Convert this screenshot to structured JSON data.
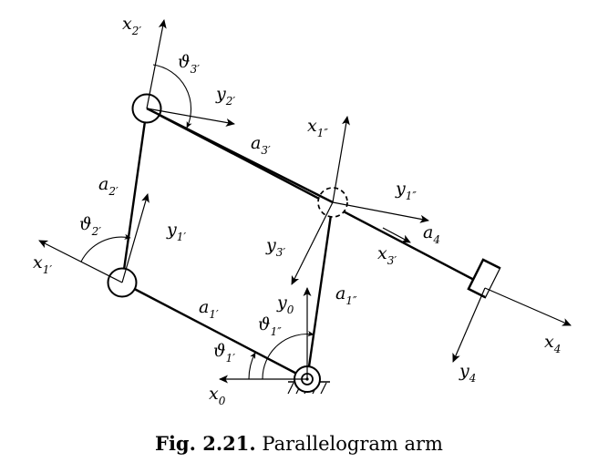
{
  "caption": {
    "number": "Fig. 2.21.",
    "title": "Parallelogram arm"
  },
  "labels": {
    "x0": {
      "main": "x",
      "sub": "0"
    },
    "y0": {
      "main": "y",
      "sub": "0"
    },
    "x1p": {
      "main": "x",
      "sub": "1′"
    },
    "y1p": {
      "main": "y",
      "sub": "1′"
    },
    "x2p": {
      "main": "x",
      "sub": "2′"
    },
    "y2p": {
      "main": "y",
      "sub": "2′"
    },
    "x1pp": {
      "main": "x",
      "sub": "1″"
    },
    "y1pp": {
      "main": "y",
      "sub": "1″"
    },
    "x3p": {
      "main": "x",
      "sub": "3′"
    },
    "y3p": {
      "main": "y",
      "sub": "3′"
    },
    "x4": {
      "main": "x",
      "sub": "4"
    },
    "y4": {
      "main": "y",
      "sub": "4"
    },
    "a1p": {
      "main": "a",
      "sub": "1′"
    },
    "a2p": {
      "main": "a",
      "sub": "2′"
    },
    "a3p": {
      "main": "a",
      "sub": "3′"
    },
    "a1pp": {
      "main": "a",
      "sub": "1″"
    },
    "a4": {
      "main": "a",
      "sub": "4"
    },
    "th1p": {
      "main": "ϑ",
      "sub": "1′"
    },
    "th2p": {
      "main": "ϑ",
      "sub": "2′"
    },
    "th3p": {
      "main": "ϑ",
      "sub": "3′"
    },
    "th1pp": {
      "main": "ϑ",
      "sub": "1″"
    }
  }
}
